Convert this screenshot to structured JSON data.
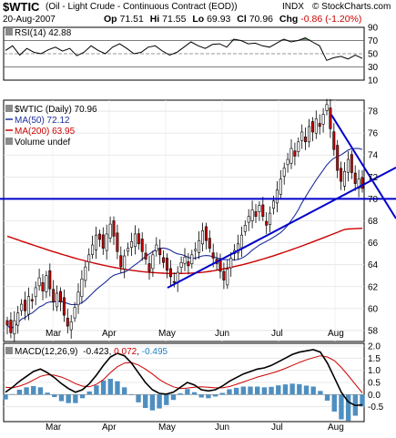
{
  "header": {
    "symbol": "$WTIC",
    "description": "(Oil - Light Crude - Continuous Contract (EOD))",
    "exchange": "INDX",
    "watermark": "© StockCharts.com",
    "date": "20-Aug-2007",
    "open_label": "Op",
    "open": "71.51",
    "high_label": "Hi",
    "high": "71.55",
    "low_label": "Lo",
    "low": "69.93",
    "close_label": "Cl",
    "close": "70.96",
    "change_label": "Chg",
    "change": "-0.86 (-1.20%)",
    "change_color": "#cc0000"
  },
  "chart_data": [
    {
      "type": "line",
      "panel": "rsi",
      "legend": "RSI(14) 42.88",
      "ylim": [
        10,
        90
      ],
      "yticks": [
        "90",
        "70",
        "50",
        "30",
        "10"
      ],
      "reference_lines": [
        70,
        50,
        30
      ],
      "series": [
        {
          "name": "RSI(14)",
          "values": [
            55,
            62,
            48,
            58,
            52,
            50,
            56,
            60,
            54,
            58,
            47,
            52,
            62,
            55,
            50,
            60,
            65,
            58,
            50,
            52,
            60,
            62,
            54,
            48,
            52,
            60,
            68,
            62,
            58,
            64,
            65,
            60,
            72,
            70,
            65,
            66,
            62,
            60,
            66,
            72,
            68,
            70,
            74,
            68,
            62,
            40,
            44,
            46,
            42,
            48,
            43
          ]
        }
      ]
    },
    {
      "type": "candlestick",
      "panel": "price",
      "legend": [
        {
          "text": "$WTIC (Daily) 70.96",
          "color": "#000000"
        },
        {
          "text": "MA(50) 72.12",
          "color": "#1f2f9c"
        },
        {
          "text": "MA(200) 63.95",
          "color": "#cc0000"
        },
        {
          "text": "Volume undef",
          "color": "#000000"
        }
      ],
      "ylim": [
        57,
        79
      ],
      "yticks": [
        "78",
        "76",
        "74",
        "72",
        "70",
        "68",
        "66",
        "64",
        "62",
        "60",
        "58"
      ],
      "xlabels": [
        "Mar",
        "Apr",
        "May",
        "Jun",
        "Jul",
        "Aug"
      ],
      "closes": [
        58.5,
        57.8,
        58.9,
        59.6,
        60.4,
        59.8,
        61.1,
        60.7,
        61.9,
        62.8,
        61.6,
        63.0,
        61.8,
        60.6,
        61.4,
        60.6,
        59.4,
        58.4,
        58.8,
        60.1,
        61.5,
        62.7,
        63.8,
        64.9,
        65.8,
        66.7,
        66.3,
        65.5,
        66.8,
        67.7,
        66.6,
        65.2,
        63.8,
        64.8,
        65.5,
        66.1,
        66.8,
        65.9,
        65.2,
        64.5,
        63.4,
        64.9,
        65.8,
        64.9,
        64.2,
        63.5,
        62.9,
        62.4,
        63.3,
        64.2,
        64.7,
        63.9,
        64.9,
        65.4,
        66.2,
        67.1,
        66.2,
        65.5,
        64.6,
        64.1,
        63.4,
        62.6,
        63.6,
        64.6,
        65.3,
        65.9,
        66.7,
        67.6,
        68.4,
        69.0,
        68.4,
        69.4,
        68.4,
        67.6,
        68.7,
        69.8,
        70.8,
        71.8,
        72.8,
        73.6,
        74.6,
        73.9,
        75.2,
        76.1,
        75.2,
        76.6,
        76.1,
        77.3,
        76.6,
        77.7,
        78.6,
        76.4,
        74.5,
        72.6,
        71.6,
        72.5,
        73.6,
        72.4,
        71.4,
        71.8,
        70.96
      ],
      "annotations": [
        {
          "type": "horizontal-support",
          "value": 70
        },
        {
          "type": "rising-trendline"
        },
        {
          "type": "falling-trendline"
        }
      ]
    },
    {
      "type": "line",
      "panel": "macd",
      "legend_label": "MACD(12,26,9)",
      "legend_values": [
        {
          "text": "-0.423",
          "color": "#000000"
        },
        {
          "text": "0.072",
          "color": "#cc0000"
        },
        {
          "text": "-0.495",
          "color": "#1f7fbf"
        }
      ],
      "ylim": [
        -1.0,
        2.0
      ],
      "yticks": [
        "2.0",
        "1.5",
        "1.0",
        "0.5",
        "0.0",
        "-0.5"
      ],
      "series": [
        {
          "name": "MACD",
          "values": [
            0.1,
            0.3,
            0.55,
            0.75,
            0.95,
            1.05,
            0.9,
            0.7,
            0.45,
            0.25,
            0.1,
            0.2,
            0.45,
            0.8,
            1.2,
            1.55,
            1.7,
            1.6,
            1.3,
            0.9,
            0.5,
            0.2,
            0.05,
            0.02,
            0.1,
            0.3,
            0.5,
            0.4,
            0.2,
            0.15,
            0.2,
            0.35,
            0.55,
            0.7,
            0.85,
            0.95,
            1.05,
            1.1,
            1.2,
            1.35,
            1.5,
            1.65,
            1.75,
            1.8,
            1.85,
            1.75,
            1.3,
            0.7,
            0.1,
            -0.3,
            -0.45,
            -0.42
          ]
        },
        {
          "name": "Signal",
          "values": [
            0.3,
            0.28,
            0.35,
            0.45,
            0.6,
            0.75,
            0.82,
            0.8,
            0.72,
            0.6,
            0.45,
            0.35,
            0.32,
            0.42,
            0.62,
            0.9,
            1.15,
            1.3,
            1.32,
            1.22,
            1.05,
            0.85,
            0.62,
            0.45,
            0.32,
            0.25,
            0.27,
            0.3,
            0.32,
            0.3,
            0.28,
            0.28,
            0.33,
            0.42,
            0.52,
            0.62,
            0.72,
            0.8,
            0.88,
            0.97,
            1.08,
            1.2,
            1.32,
            1.43,
            1.52,
            1.6,
            1.55,
            1.4,
            1.12,
            0.78,
            0.42,
            0.07
          ]
        }
      ]
    }
  ]
}
